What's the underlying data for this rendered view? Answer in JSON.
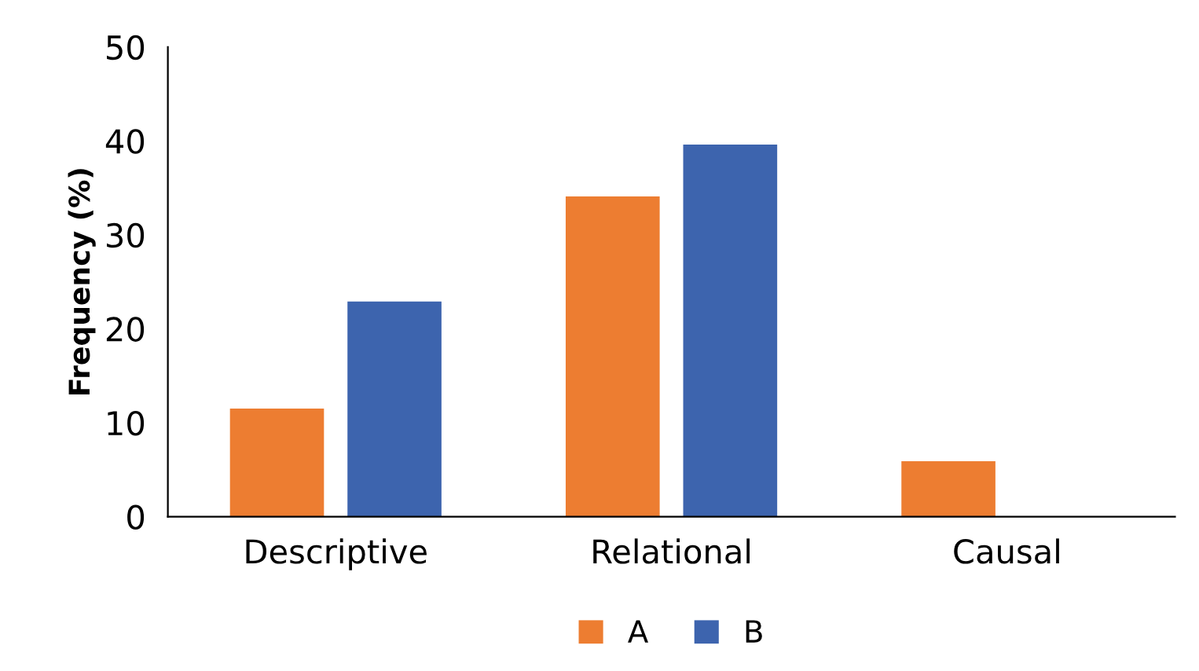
{
  "chart_data": {
    "type": "bar",
    "ylabel": "Frequency (%)",
    "categories": [
      "Descriptive",
      "Relational",
      "Causal"
    ],
    "series": [
      {
        "name": "A",
        "color": "#ed7d31",
        "values": [
          11.5,
          34.1,
          5.9
        ]
      },
      {
        "name": "B",
        "color": "#3d64ae",
        "values": [
          22.9,
          39.6,
          0
        ]
      }
    ],
    "ylim": [
      0,
      50
    ],
    "yticks": [
      0,
      10,
      20,
      30,
      40,
      50
    ],
    "grid": false,
    "legend": "bottom"
  }
}
